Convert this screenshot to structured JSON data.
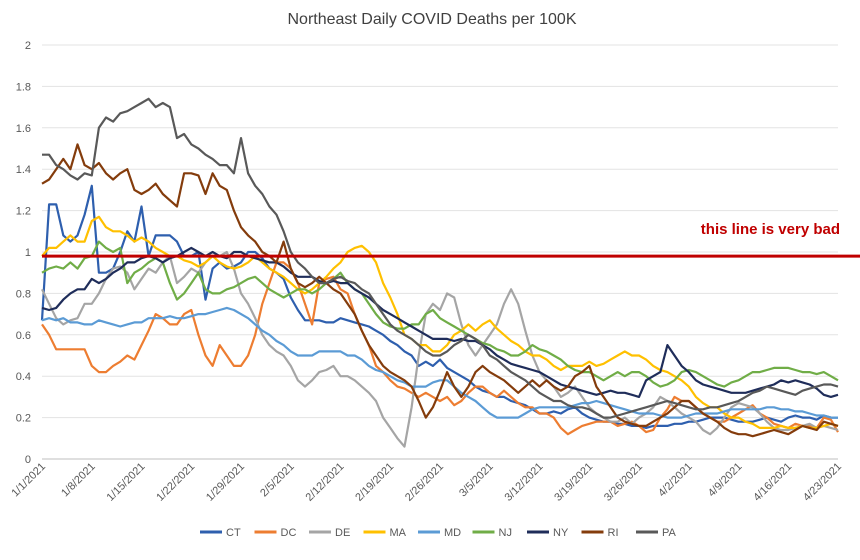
{
  "chart_data": {
    "type": "line",
    "title": "Northeast Daily COVID Deaths per 100K",
    "xlabel": "",
    "ylabel": "",
    "ylim": [
      0,
      2
    ],
    "yticks": [
      0,
      0.2,
      0.4,
      0.6,
      0.8,
      1,
      1.2,
      1.4,
      1.6,
      1.8,
      2
    ],
    "ytick_labels": [
      "0",
      "0.2",
      "0.4",
      "0.6",
      "0.8",
      "1",
      "1.2",
      "1.4",
      "1.6",
      "1.8",
      "2"
    ],
    "x_ticks": [
      "1/1/2021",
      "1/8/2021",
      "1/15/2021",
      "1/22/2021",
      "1/29/2021",
      "2/5/2021",
      "2/12/2021",
      "2/19/2021",
      "2/26/2021",
      "3/5/2021",
      "3/12/2021",
      "3/19/2021",
      "3/26/2021",
      "4/2/2021",
      "4/9/2021",
      "4/16/2021",
      "4/23/2021"
    ],
    "grid": true,
    "legend_position": "bottom",
    "reference_line": {
      "y": 0.98,
      "label": "this line is very bad",
      "color": "#c00000"
    },
    "series": [
      {
        "name": "CT",
        "color": "#2e5fae",
        "values": [
          0.67,
          1.23,
          1.23,
          1.08,
          1.05,
          1.08,
          1.18,
          1.32,
          0.9,
          0.9,
          0.92,
          1.0,
          1.1,
          1.05,
          1.22,
          0.98,
          1.08,
          1.08,
          1.08,
          1.05,
          0.98,
          0.98,
          1.0,
          0.77,
          0.92,
          0.95,
          0.92,
          0.93,
          0.95,
          1.0,
          1.0,
          0.97,
          0.92,
          0.9,
          0.87,
          0.78,
          0.72,
          0.67,
          0.67,
          0.67,
          0.66,
          0.66,
          0.68,
          0.67,
          0.66,
          0.65,
          0.64,
          0.62,
          0.6,
          0.57,
          0.55,
          0.52,
          0.5,
          0.45,
          0.47,
          0.45,
          0.48,
          0.44,
          0.42,
          0.4,
          0.38,
          0.35,
          0.33,
          0.32,
          0.3,
          0.3,
          0.28,
          0.27,
          0.26,
          0.24,
          0.22,
          0.22,
          0.23,
          0.22,
          0.24,
          0.25,
          0.22,
          0.2,
          0.19,
          0.18,
          0.18,
          0.17,
          0.17,
          0.16,
          0.16,
          0.15,
          0.16,
          0.16,
          0.16,
          0.17,
          0.17,
          0.18,
          0.18,
          0.19,
          0.2,
          0.2,
          0.2,
          0.19,
          0.18,
          0.18,
          0.18,
          0.19,
          0.2,
          0.19,
          0.18,
          0.2,
          0.21,
          0.2,
          0.2,
          0.19,
          0.21,
          0.2,
          0.2
        ]
      },
      {
        "name": "DC",
        "color": "#ed7d31",
        "values": [
          0.65,
          0.6,
          0.53,
          0.53,
          0.53,
          0.53,
          0.53,
          0.45,
          0.42,
          0.42,
          0.45,
          0.47,
          0.5,
          0.48,
          0.55,
          0.62,
          0.7,
          0.68,
          0.65,
          0.65,
          0.7,
          0.72,
          0.6,
          0.5,
          0.45,
          0.55,
          0.5,
          0.45,
          0.45,
          0.5,
          0.6,
          0.75,
          0.85,
          0.95,
          0.95,
          0.92,
          0.85,
          0.75,
          0.65,
          0.85,
          0.87,
          0.88,
          0.82,
          0.8,
          0.7,
          0.62,
          0.55,
          0.45,
          0.42,
          0.38,
          0.35,
          0.34,
          0.32,
          0.3,
          0.32,
          0.3,
          0.28,
          0.3,
          0.26,
          0.28,
          0.32,
          0.35,
          0.35,
          0.32,
          0.3,
          0.33,
          0.3,
          0.27,
          0.25,
          0.25,
          0.22,
          0.22,
          0.2,
          0.15,
          0.12,
          0.14,
          0.16,
          0.17,
          0.18,
          0.18,
          0.18,
          0.16,
          0.17,
          0.18,
          0.16,
          0.13,
          0.14,
          0.2,
          0.24,
          0.3,
          0.28,
          0.28,
          0.25,
          0.22,
          0.2,
          0.18,
          0.18,
          0.2,
          0.22,
          0.24,
          0.26,
          0.22,
          0.2,
          0.17,
          0.16,
          0.15,
          0.17,
          0.16,
          0.16,
          0.15,
          0.2,
          0.19,
          0.13
        ]
      },
      {
        "name": "DE",
        "color": "#a5a5a5",
        "values": [
          0.82,
          0.75,
          0.68,
          0.65,
          0.67,
          0.68,
          0.75,
          0.75,
          0.8,
          0.87,
          0.92,
          0.93,
          0.9,
          0.82,
          0.87,
          0.92,
          0.9,
          0.95,
          0.98,
          0.85,
          0.88,
          0.92,
          0.9,
          0.95,
          0.98,
          0.98,
          1.0,
          0.92,
          0.8,
          0.75,
          0.68,
          0.6,
          0.55,
          0.52,
          0.5,
          0.45,
          0.38,
          0.35,
          0.38,
          0.42,
          0.43,
          0.45,
          0.4,
          0.4,
          0.38,
          0.35,
          0.32,
          0.28,
          0.2,
          0.15,
          0.1,
          0.06,
          0.25,
          0.5,
          0.7,
          0.75,
          0.72,
          0.8,
          0.78,
          0.65,
          0.55,
          0.5,
          0.55,
          0.6,
          0.65,
          0.75,
          0.82,
          0.75,
          0.62,
          0.5,
          0.42,
          0.38,
          0.35,
          0.3,
          0.32,
          0.35,
          0.3,
          0.25,
          0.22,
          0.2,
          0.18,
          0.18,
          0.2,
          0.17,
          0.2,
          0.22,
          0.25,
          0.3,
          0.28,
          0.25,
          0.22,
          0.2,
          0.18,
          0.14,
          0.12,
          0.15,
          0.2,
          0.25,
          0.27,
          0.26,
          0.25,
          0.22,
          0.18,
          0.15,
          0.14,
          0.14,
          0.15,
          0.16,
          0.17,
          0.15,
          0.16,
          0.15,
          0.14
        ]
      },
      {
        "name": "MA",
        "color": "#ffc000",
        "values": [
          0.98,
          1.02,
          1.02,
          1.05,
          1.08,
          1.05,
          1.05,
          1.15,
          1.17,
          1.12,
          1.1,
          1.1,
          1.08,
          1.05,
          1.07,
          1.05,
          1.02,
          1.0,
          0.98,
          0.98,
          0.96,
          0.95,
          0.93,
          0.95,
          0.98,
          0.95,
          0.93,
          0.92,
          0.93,
          0.95,
          0.98,
          0.95,
          0.92,
          0.9,
          0.88,
          0.85,
          0.82,
          0.8,
          0.82,
          0.85,
          0.88,
          0.92,
          0.95,
          1.0,
          1.02,
          1.03,
          1.0,
          0.95,
          0.85,
          0.78,
          0.7,
          0.6,
          0.58,
          0.55,
          0.55,
          0.52,
          0.52,
          0.55,
          0.6,
          0.62,
          0.65,
          0.62,
          0.65,
          0.67,
          0.63,
          0.6,
          0.57,
          0.55,
          0.52,
          0.5,
          0.5,
          0.48,
          0.45,
          0.43,
          0.45,
          0.45,
          0.45,
          0.47,
          0.45,
          0.46,
          0.48,
          0.5,
          0.52,
          0.5,
          0.5,
          0.48,
          0.45,
          0.43,
          0.42,
          0.4,
          0.38,
          0.35,
          0.3,
          0.27,
          0.25,
          0.25,
          0.22,
          0.2,
          0.2,
          0.18,
          0.17,
          0.15,
          0.15,
          0.15,
          0.16,
          0.15,
          0.15,
          0.16,
          0.15,
          0.15,
          0.16,
          0.17,
          0.16
        ]
      },
      {
        "name": "MD",
        "color": "#5b9bd5",
        "values": [
          0.67,
          0.68,
          0.67,
          0.68,
          0.66,
          0.66,
          0.65,
          0.65,
          0.67,
          0.66,
          0.65,
          0.64,
          0.65,
          0.66,
          0.66,
          0.68,
          0.68,
          0.68,
          0.69,
          0.68,
          0.68,
          0.69,
          0.7,
          0.7,
          0.71,
          0.72,
          0.73,
          0.72,
          0.7,
          0.68,
          0.65,
          0.62,
          0.6,
          0.57,
          0.55,
          0.52,
          0.5,
          0.5,
          0.5,
          0.52,
          0.52,
          0.52,
          0.52,
          0.5,
          0.5,
          0.48,
          0.45,
          0.43,
          0.42,
          0.4,
          0.38,
          0.37,
          0.35,
          0.35,
          0.35,
          0.37,
          0.38,
          0.38,
          0.35,
          0.32,
          0.3,
          0.28,
          0.25,
          0.22,
          0.2,
          0.2,
          0.2,
          0.2,
          0.22,
          0.24,
          0.25,
          0.25,
          0.25,
          0.25,
          0.25,
          0.26,
          0.27,
          0.27,
          0.28,
          0.27,
          0.26,
          0.25,
          0.24,
          0.23,
          0.22,
          0.22,
          0.22,
          0.21,
          0.2,
          0.2,
          0.2,
          0.21,
          0.22,
          0.22,
          0.22,
          0.22,
          0.23,
          0.24,
          0.24,
          0.24,
          0.24,
          0.24,
          0.25,
          0.25,
          0.24,
          0.24,
          0.23,
          0.23,
          0.22,
          0.21,
          0.21,
          0.2,
          0.2
        ]
      },
      {
        "name": "NJ",
        "color": "#70ad47",
        "values": [
          0.9,
          0.92,
          0.93,
          0.92,
          0.95,
          0.92,
          0.97,
          0.98,
          1.05,
          1.02,
          1.0,
          1.02,
          0.85,
          0.9,
          0.92,
          0.95,
          0.97,
          0.95,
          0.85,
          0.77,
          0.8,
          0.85,
          0.9,
          0.82,
          0.8,
          0.8,
          0.82,
          0.83,
          0.85,
          0.87,
          0.88,
          0.85,
          0.82,
          0.8,
          0.78,
          0.8,
          0.82,
          0.82,
          0.8,
          0.82,
          0.85,
          0.87,
          0.9,
          0.85,
          0.82,
          0.8,
          0.75,
          0.7,
          0.66,
          0.64,
          0.63,
          0.63,
          0.65,
          0.65,
          0.7,
          0.72,
          0.68,
          0.66,
          0.64,
          0.62,
          0.6,
          0.58,
          0.56,
          0.55,
          0.53,
          0.52,
          0.5,
          0.5,
          0.52,
          0.55,
          0.53,
          0.52,
          0.5,
          0.48,
          0.45,
          0.43,
          0.42,
          0.42,
          0.4,
          0.38,
          0.4,
          0.42,
          0.4,
          0.42,
          0.42,
          0.4,
          0.37,
          0.35,
          0.36,
          0.38,
          0.42,
          0.43,
          0.42,
          0.4,
          0.38,
          0.36,
          0.35,
          0.37,
          0.38,
          0.4,
          0.42,
          0.42,
          0.43,
          0.44,
          0.44,
          0.44,
          0.43,
          0.42,
          0.42,
          0.41,
          0.42,
          0.4,
          0.38
        ]
      },
      {
        "name": "NY",
        "color": "#1f2d5a",
        "values": [
          0.73,
          0.72,
          0.73,
          0.77,
          0.8,
          0.82,
          0.82,
          0.87,
          0.85,
          0.87,
          0.9,
          0.92,
          0.95,
          0.95,
          0.97,
          0.98,
          0.97,
          0.95,
          0.97,
          0.98,
          1.0,
          1.02,
          1.0,
          0.98,
          1.0,
          0.98,
          0.97,
          1.0,
          1.0,
          0.98,
          0.97,
          0.96,
          0.95,
          0.95,
          0.93,
          0.9,
          0.88,
          0.88,
          0.88,
          0.86,
          0.85,
          0.86,
          0.85,
          0.85,
          0.82,
          0.8,
          0.78,
          0.75,
          0.72,
          0.7,
          0.68,
          0.66,
          0.64,
          0.62,
          0.6,
          0.58,
          0.58,
          0.58,
          0.57,
          0.58,
          0.57,
          0.57,
          0.55,
          0.53,
          0.5,
          0.48,
          0.46,
          0.45,
          0.44,
          0.43,
          0.42,
          0.4,
          0.38,
          0.36,
          0.35,
          0.34,
          0.33,
          0.32,
          0.31,
          0.32,
          0.33,
          0.32,
          0.32,
          0.31,
          0.3,
          0.38,
          0.4,
          0.42,
          0.55,
          0.5,
          0.45,
          0.42,
          0.38,
          0.36,
          0.35,
          0.34,
          0.33,
          0.32,
          0.32,
          0.32,
          0.33,
          0.34,
          0.35,
          0.36,
          0.38,
          0.37,
          0.38,
          0.37,
          0.36,
          0.34,
          0.31,
          0.3,
          0.31
        ]
      },
      {
        "name": "RI",
        "color": "#843c0c",
        "values": [
          1.33,
          1.35,
          1.4,
          1.45,
          1.4,
          1.52,
          1.42,
          1.4,
          1.43,
          1.38,
          1.35,
          1.38,
          1.4,
          1.3,
          1.28,
          1.3,
          1.33,
          1.28,
          1.25,
          1.22,
          1.38,
          1.38,
          1.37,
          1.28,
          1.38,
          1.32,
          1.3,
          1.2,
          1.12,
          1.08,
          1.05,
          1.0,
          0.98,
          0.95,
          1.05,
          0.92,
          0.85,
          0.83,
          0.85,
          0.88,
          0.85,
          0.82,
          0.8,
          0.75,
          0.7,
          0.62,
          0.55,
          0.5,
          0.45,
          0.42,
          0.4,
          0.38,
          0.35,
          0.28,
          0.2,
          0.25,
          0.33,
          0.42,
          0.35,
          0.3,
          0.35,
          0.42,
          0.45,
          0.42,
          0.4,
          0.38,
          0.35,
          0.32,
          0.35,
          0.38,
          0.35,
          0.38,
          0.35,
          0.33,
          0.35,
          0.4,
          0.42,
          0.45,
          0.35,
          0.3,
          0.25,
          0.2,
          0.18,
          0.17,
          0.16,
          0.16,
          0.18,
          0.2,
          0.22,
          0.25,
          0.28,
          0.28,
          0.25,
          0.22,
          0.2,
          0.18,
          0.15,
          0.13,
          0.12,
          0.12,
          0.11,
          0.12,
          0.13,
          0.14,
          0.13,
          0.12,
          0.14,
          0.16,
          0.15,
          0.14,
          0.18,
          0.17,
          0.16
        ]
      },
      {
        "name": "PA",
        "color": "#595959",
        "values": [
          1.47,
          1.47,
          1.42,
          1.4,
          1.37,
          1.35,
          1.38,
          1.37,
          1.6,
          1.65,
          1.63,
          1.67,
          1.68,
          1.7,
          1.72,
          1.74,
          1.7,
          1.72,
          1.7,
          1.55,
          1.57,
          1.52,
          1.5,
          1.47,
          1.45,
          1.42,
          1.42,
          1.38,
          1.55,
          1.38,
          1.32,
          1.28,
          1.22,
          1.18,
          1.1,
          1.0,
          0.95,
          0.92,
          0.88,
          0.85,
          0.85,
          0.87,
          0.88,
          0.86,
          0.85,
          0.82,
          0.8,
          0.75,
          0.7,
          0.65,
          0.62,
          0.6,
          0.58,
          0.55,
          0.52,
          0.5,
          0.5,
          0.52,
          0.55,
          0.57,
          0.6,
          0.58,
          0.55,
          0.5,
          0.48,
          0.45,
          0.42,
          0.4,
          0.38,
          0.35,
          0.32,
          0.3,
          0.28,
          0.28,
          0.26,
          0.25,
          0.25,
          0.24,
          0.22,
          0.2,
          0.2,
          0.21,
          0.22,
          0.23,
          0.24,
          0.25,
          0.26,
          0.27,
          0.28,
          0.27,
          0.26,
          0.25,
          0.24,
          0.24,
          0.25,
          0.25,
          0.26,
          0.27,
          0.28,
          0.3,
          0.32,
          0.33,
          0.35,
          0.34,
          0.33,
          0.32,
          0.31,
          0.33,
          0.34,
          0.35,
          0.36,
          0.36,
          0.35
        ]
      }
    ]
  }
}
